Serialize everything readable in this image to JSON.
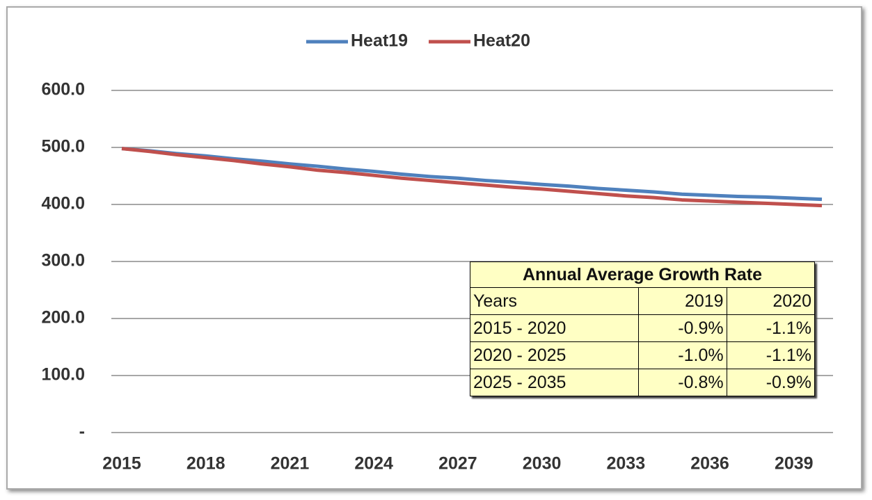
{
  "chart_data": {
    "type": "line",
    "x": [
      2015,
      2016,
      2017,
      2018,
      2019,
      2020,
      2021,
      2022,
      2023,
      2024,
      2025,
      2026,
      2027,
      2028,
      2029,
      2030,
      2031,
      2032,
      2033,
      2034,
      2035,
      2036,
      2037,
      2038,
      2039,
      2040
    ],
    "series": [
      {
        "name": "Heat19",
        "color": "#4f81bd",
        "values": [
          498,
          494,
          489,
          485,
          480,
          476,
          471,
          467,
          462,
          458,
          453,
          449,
          446,
          442,
          439,
          435,
          432,
          428,
          425,
          422,
          418,
          416,
          414,
          413,
          411,
          409
        ]
      },
      {
        "name": "Heat20",
        "color": "#c0504d",
        "values": [
          498,
          493,
          487,
          482,
          477,
          471,
          466,
          460,
          456,
          451,
          446,
          442,
          438,
          434,
          430,
          427,
          423,
          419,
          415,
          412,
          408,
          406,
          404,
          402,
          400,
          398
        ]
      }
    ],
    "xlim": [
      2015,
      2040
    ],
    "xticks": [
      2015,
      2018,
      2021,
      2024,
      2027,
      2030,
      2033,
      2036,
      2039
    ],
    "ylim": [
      0,
      600
    ],
    "yticks": [
      {
        "value": 0,
        "label": "-"
      },
      {
        "value": 100,
        "label": "100.0"
      },
      {
        "value": 200,
        "label": "200.0"
      },
      {
        "value": 300,
        "label": "300.0"
      },
      {
        "value": 400,
        "label": "400.0"
      },
      {
        "value": 500,
        "label": "500.0"
      },
      {
        "value": 600,
        "label": "600.0"
      }
    ],
    "grid": true,
    "legend": "top",
    "table": {
      "title": "Annual Average Growth Rate",
      "header": [
        "Years",
        "2019",
        "2020"
      ],
      "rows": [
        [
          "2015 - 2020",
          "-0.9%",
          "-1.1%"
        ],
        [
          "2020 - 2025",
          "-1.0%",
          "-1.1%"
        ],
        [
          "2025 - 2035",
          "-0.8%",
          "-0.9%"
        ]
      ]
    }
  }
}
